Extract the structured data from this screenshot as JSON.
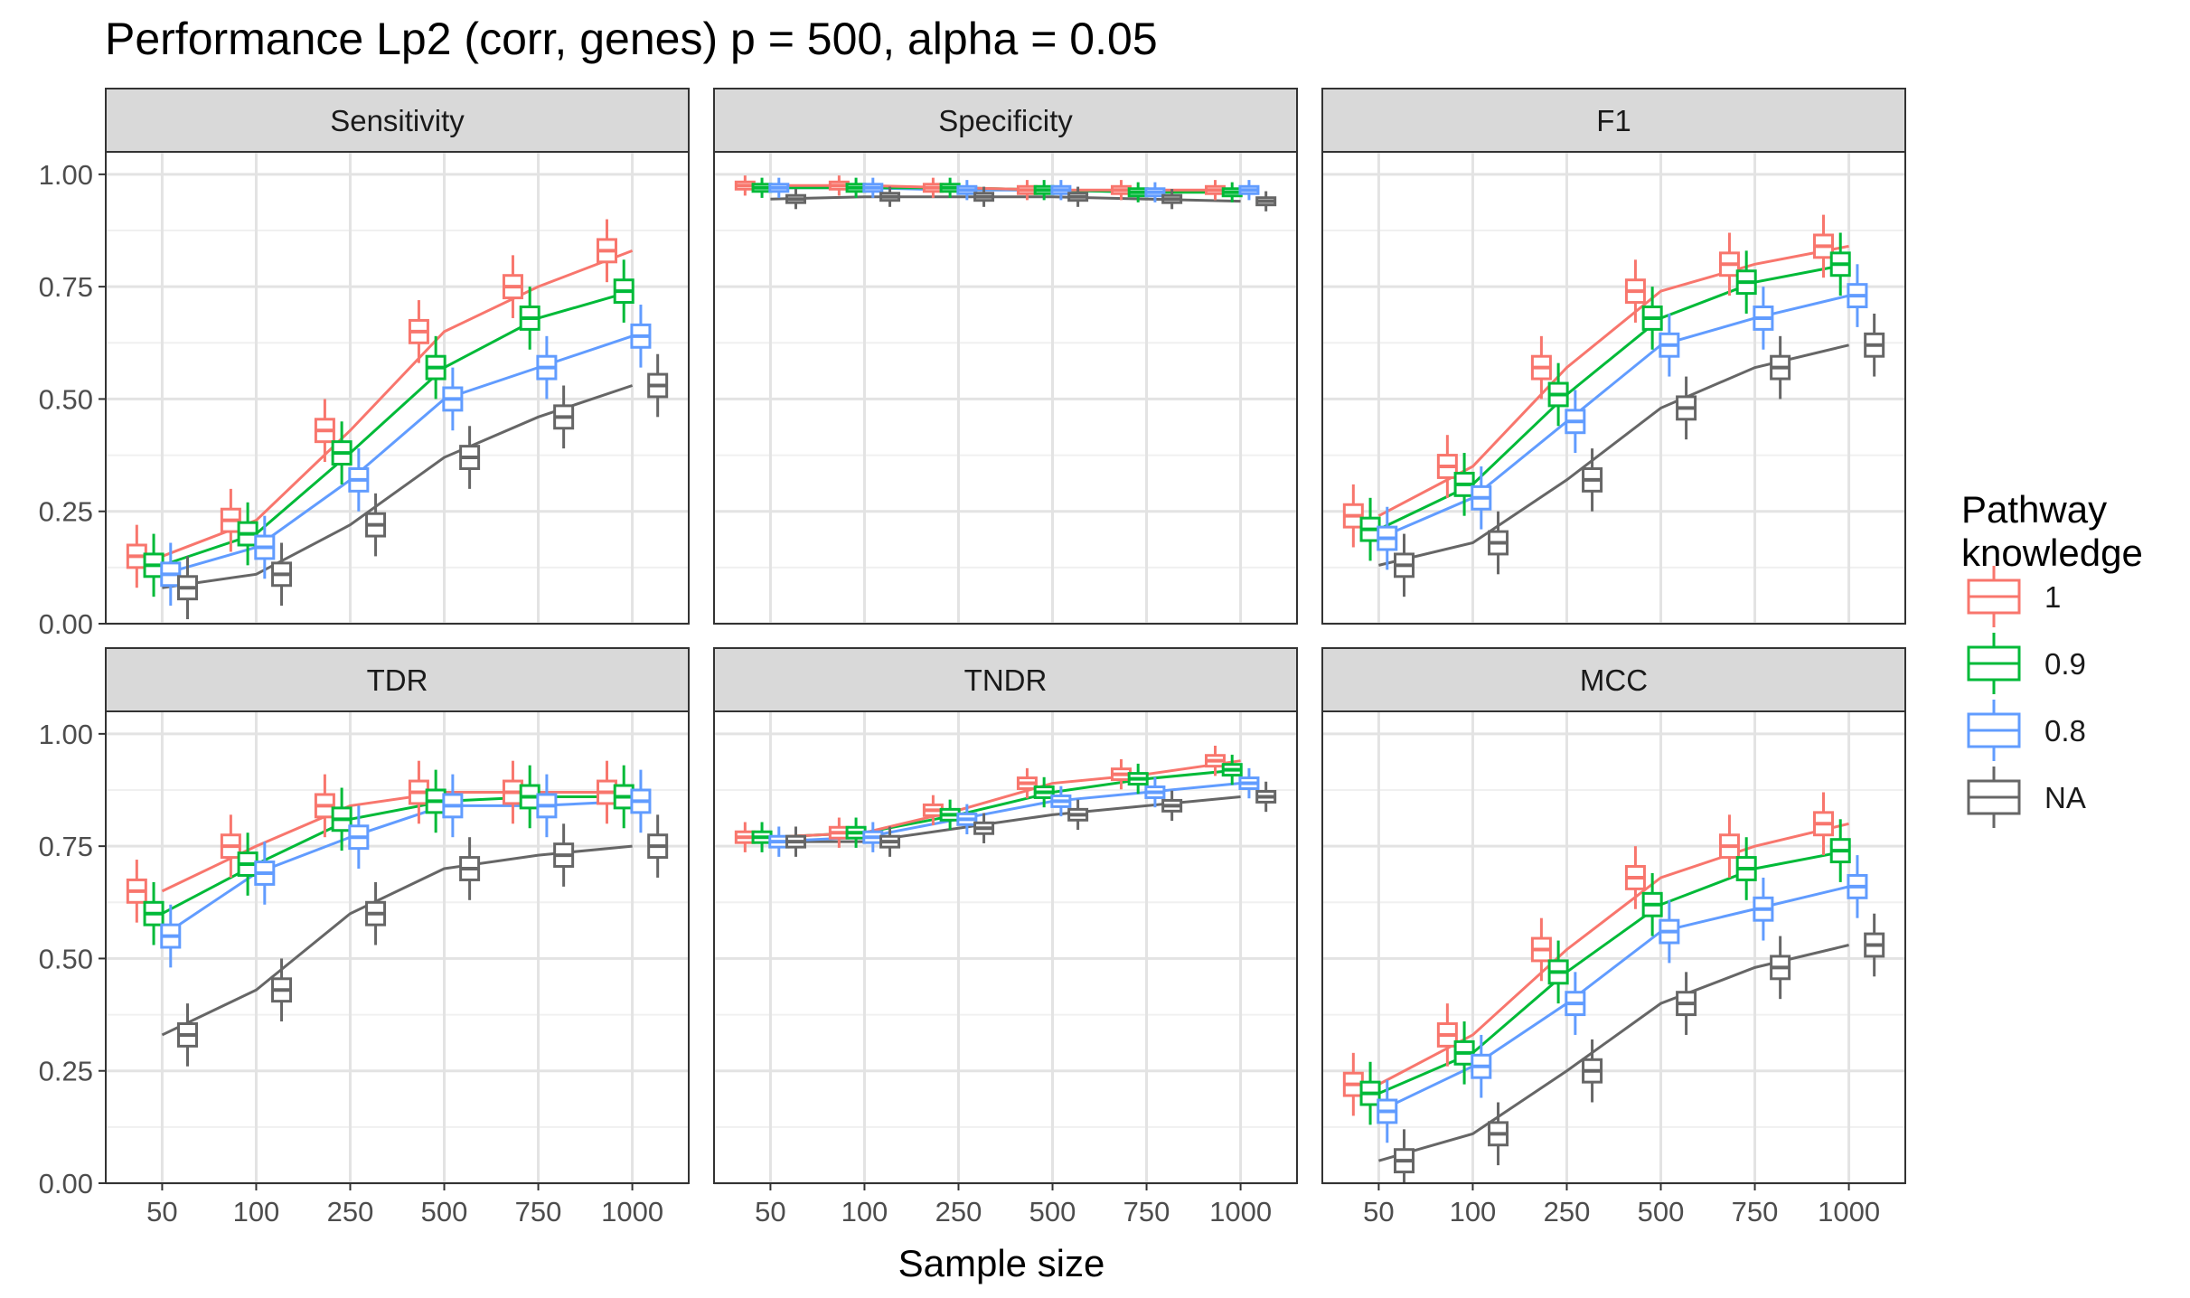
{
  "figure": {
    "title": "Performance Lp2 (corr, genes) p = 500, alpha = 0.05",
    "xlabel": "Sample size",
    "legend_title_line1": "Pathway",
    "legend_title_line2": "knowledge"
  },
  "chart_data": {
    "type": "line",
    "subtype": "faceted boxplot with mean lines",
    "title": "Performance Lp2 (corr, genes) p = 500, alpha = 0.05",
    "xlabel": "Sample size",
    "ylabel": "",
    "categories": [
      "50",
      "100",
      "250",
      "500",
      "750",
      "1000"
    ],
    "ylim": [
      0,
      1.05
    ],
    "yticks": [
      "0.00",
      "0.25",
      "0.50",
      "0.75",
      "1.00"
    ],
    "grid": true,
    "legend_position": "right",
    "legend": [
      {
        "name": "1",
        "color": "#F8766D"
      },
      {
        "name": "0.9",
        "color": "#00BA38"
      },
      {
        "name": "0.8",
        "color": "#619CFF"
      },
      {
        "name": "NA",
        "color": "#666666"
      }
    ],
    "panels": [
      {
        "title": "Sensitivity",
        "series": [
          {
            "name": "1",
            "values": [
              0.15,
              0.23,
              0.43,
              0.65,
              0.75,
              0.83
            ]
          },
          {
            "name": "0.9",
            "values": [
              0.13,
              0.2,
              0.38,
              0.57,
              0.68,
              0.74
            ]
          },
          {
            "name": "0.8",
            "values": [
              0.11,
              0.17,
              0.32,
              0.5,
              0.57,
              0.64
            ]
          },
          {
            "name": "NA",
            "values": [
              0.08,
              0.11,
              0.22,
              0.37,
              0.46,
              0.53
            ]
          }
        ]
      },
      {
        "title": "Specificity",
        "series": [
          {
            "name": "1",
            "values": [
              0.975,
              0.975,
              0.97,
              0.965,
              0.965,
              0.965
            ]
          },
          {
            "name": "0.9",
            "values": [
              0.97,
              0.97,
              0.97,
              0.965,
              0.96,
              0.96
            ]
          },
          {
            "name": "0.8",
            "values": [
              0.97,
              0.97,
              0.965,
              0.965,
              0.96,
              0.965
            ]
          },
          {
            "name": "NA",
            "values": [
              0.945,
              0.95,
              0.95,
              0.95,
              0.945,
              0.94
            ]
          }
        ]
      },
      {
        "title": "F1",
        "series": [
          {
            "name": "1",
            "values": [
              0.24,
              0.35,
              0.57,
              0.74,
              0.8,
              0.84
            ]
          },
          {
            "name": "0.9",
            "values": [
              0.21,
              0.31,
              0.51,
              0.68,
              0.76,
              0.8
            ]
          },
          {
            "name": "0.8",
            "values": [
              0.19,
              0.28,
              0.45,
              0.62,
              0.68,
              0.73
            ]
          },
          {
            "name": "NA",
            "values": [
              0.13,
              0.18,
              0.32,
              0.48,
              0.57,
              0.62
            ]
          }
        ]
      },
      {
        "title": "TDR",
        "series": [
          {
            "name": "1",
            "values": [
              0.65,
              0.75,
              0.84,
              0.87,
              0.87,
              0.87
            ]
          },
          {
            "name": "0.9",
            "values": [
              0.6,
              0.71,
              0.81,
              0.85,
              0.86,
              0.86
            ]
          },
          {
            "name": "0.8",
            "values": [
              0.55,
              0.69,
              0.77,
              0.84,
              0.84,
              0.85
            ]
          },
          {
            "name": "NA",
            "values": [
              0.33,
              0.43,
              0.6,
              0.7,
              0.73,
              0.75
            ]
          }
        ]
      },
      {
        "title": "TNDR",
        "series": [
          {
            "name": "1",
            "values": [
              0.77,
              0.78,
              0.83,
              0.89,
              0.91,
              0.94
            ]
          },
          {
            "name": "0.9",
            "values": [
              0.77,
              0.78,
              0.82,
              0.87,
              0.9,
              0.92
            ]
          },
          {
            "name": "0.8",
            "values": [
              0.76,
              0.77,
              0.81,
              0.85,
              0.87,
              0.89
            ]
          },
          {
            "name": "NA",
            "values": [
              0.76,
              0.76,
              0.79,
              0.82,
              0.84,
              0.86
            ]
          }
        ]
      },
      {
        "title": "MCC",
        "series": [
          {
            "name": "1",
            "values": [
              0.22,
              0.33,
              0.52,
              0.68,
              0.75,
              0.8
            ]
          },
          {
            "name": "0.9",
            "values": [
              0.2,
              0.29,
              0.47,
              0.62,
              0.7,
              0.74
            ]
          },
          {
            "name": "0.8",
            "values": [
              0.16,
              0.26,
              0.4,
              0.56,
              0.61,
              0.66
            ]
          },
          {
            "name": "NA",
            "values": [
              0.05,
              0.11,
              0.25,
              0.4,
              0.48,
              0.53
            ]
          }
        ]
      }
    ]
  }
}
